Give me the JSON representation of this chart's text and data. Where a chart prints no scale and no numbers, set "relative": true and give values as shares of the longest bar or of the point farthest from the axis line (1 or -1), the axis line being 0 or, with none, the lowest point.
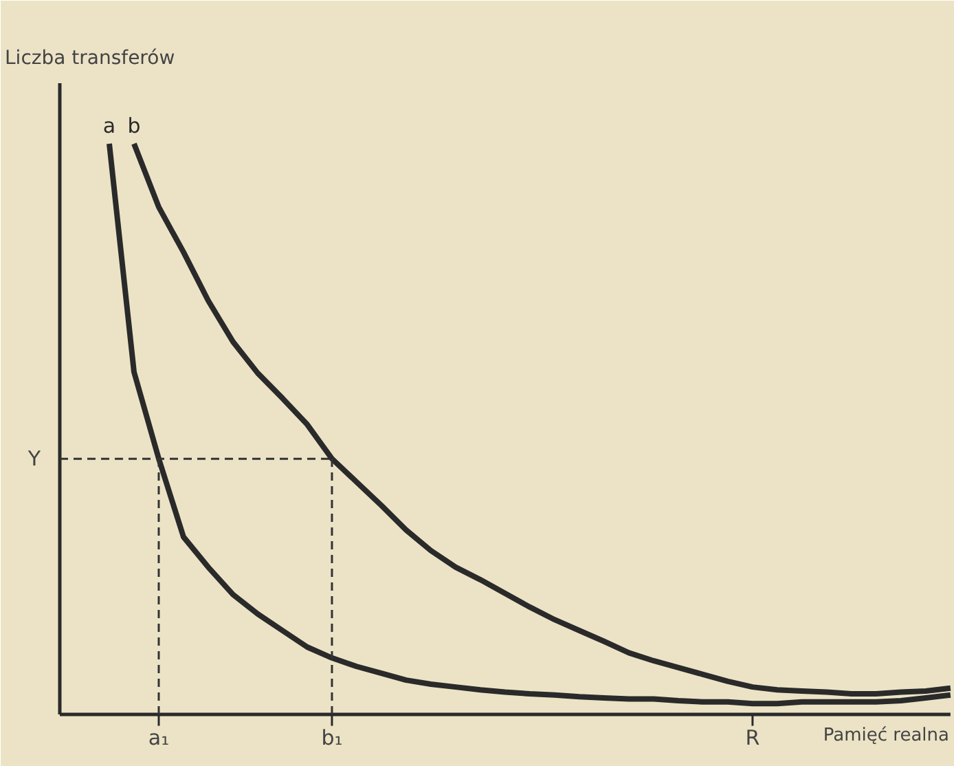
{
  "chart_data": {
    "type": "line",
    "relative": true,
    "xlabel": "Pamięć realna",
    "ylabel": "Liczba transferów",
    "categories": [
      null,
      null,
      null,
      null,
      "a₁",
      null,
      null,
      null,
      null,
      null,
      null,
      "b₁",
      null,
      null,
      null,
      null,
      null,
      null,
      null,
      null,
      null,
      null,
      null,
      null,
      null,
      null,
      null,
      null,
      "R",
      null,
      null,
      null,
      null,
      null,
      null,
      null,
      null
    ],
    "series": [
      {
        "name": "a",
        "color": "#2a2a2a",
        "values": [
          null,
          null,
          1.0,
          0.6,
          0.448,
          0.311,
          0.258,
          0.21,
          0.176,
          0.147,
          0.118,
          0.099,
          0.084,
          0.072,
          0.06,
          0.053,
          0.048,
          0.043,
          0.039,
          0.036,
          0.034,
          0.031,
          0.029,
          0.027,
          0.027,
          0.024,
          0.022,
          0.022,
          0.019,
          0.019,
          0.022,
          0.022,
          0.022,
          0.022,
          0.024,
          0.029,
          0.034
        ]
      },
      {
        "name": "b",
        "color": "#2a2a2a",
        "values": [
          null,
          null,
          null,
          1.0,
          0.889,
          0.81,
          0.725,
          0.653,
          0.598,
          0.554,
          0.508,
          0.448,
          0.407,
          0.366,
          0.323,
          0.287,
          0.258,
          0.236,
          0.212,
          0.188,
          0.166,
          0.147,
          0.128,
          0.108,
          0.094,
          0.082,
          0.07,
          0.058,
          0.048,
          0.043,
          0.041,
          0.039,
          0.036,
          0.036,
          0.039,
          0.041,
          0.046
        ]
      }
    ],
    "ref_lines": [
      {
        "axis": "y",
        "value": 0.448,
        "label": "Y",
        "line_style": "dashed"
      },
      {
        "axis": "x",
        "value": "a₁",
        "line_style": "dashed"
      },
      {
        "axis": "x",
        "value": "b₁",
        "line_style": "dashed"
      }
    ],
    "legend": false,
    "grid": false,
    "marker": "none",
    "line_style": "solid"
  }
}
